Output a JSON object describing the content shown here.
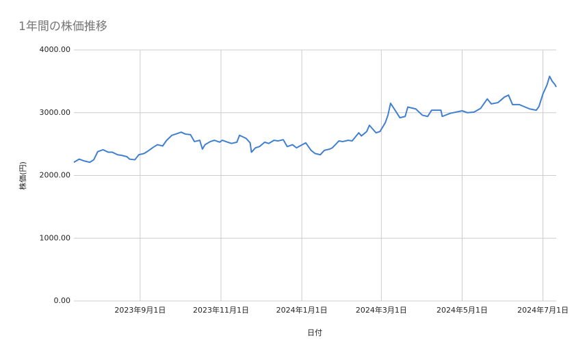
{
  "chart_data": {
    "type": "line",
    "title": "1年間の株価推移",
    "x_label": "日付",
    "y_label": "株価(円)",
    "x": [
      "2023-07-13",
      "2023-07-17",
      "2023-07-21",
      "2023-07-25",
      "2023-07-28",
      "2023-07-31",
      "2023-08-04",
      "2023-08-08",
      "2023-08-11",
      "2023-08-15",
      "2023-08-18",
      "2023-08-22",
      "2023-08-24",
      "2023-08-28",
      "2023-08-31",
      "2023-09-04",
      "2023-09-07",
      "2023-09-11",
      "2023-09-14",
      "2023-09-18",
      "2023-09-21",
      "2023-09-25",
      "2023-09-28",
      "2023-10-02",
      "2023-10-05",
      "2023-10-09",
      "2023-10-12",
      "2023-10-16",
      "2023-10-18",
      "2023-10-20",
      "2023-10-24",
      "2023-10-27",
      "2023-10-31",
      "2023-11-02",
      "2023-11-06",
      "2023-11-09",
      "2023-11-13",
      "2023-11-15",
      "2023-11-20",
      "2023-11-23",
      "2023-11-24",
      "2023-11-27",
      "2023-11-30",
      "2023-12-04",
      "2023-12-07",
      "2023-12-11",
      "2023-12-14",
      "2023-12-18",
      "2023-12-21",
      "2023-12-25",
      "2023-12-28",
      "2024-01-04",
      "2024-01-08",
      "2024-01-11",
      "2024-01-15",
      "2024-01-18",
      "2024-01-22",
      "2024-01-24",
      "2024-01-29",
      "2024-02-01",
      "2024-02-05",
      "2024-02-08",
      "2024-02-13",
      "2024-02-15",
      "2024-02-19",
      "2024-02-21",
      "2024-02-26",
      "2024-02-29",
      "2024-03-04",
      "2024-03-06",
      "2024-03-08",
      "2024-03-12",
      "2024-03-15",
      "2024-03-19",
      "2024-03-21",
      "2024-03-27",
      "2024-04-01",
      "2024-04-05",
      "2024-04-08",
      "2024-04-15",
      "2024-04-16",
      "2024-04-22",
      "2024-05-01",
      "2024-05-05",
      "2024-05-10",
      "2024-05-15",
      "2024-05-20",
      "2024-05-23",
      "2024-05-28",
      "2024-06-02",
      "2024-06-05",
      "2024-06-08",
      "2024-06-13",
      "2024-06-21",
      "2024-06-26",
      "2024-06-28",
      "2024-07-01",
      "2024-07-04",
      "2024-07-06",
      "2024-07-08",
      "2024-07-10",
      "2024-07-11"
    ],
    "series": [
      {
        "name": "株価(円)",
        "color": "#3f7fd0",
        "values": [
          2210,
          2260,
          2230,
          2210,
          2250,
          2380,
          2410,
          2370,
          2370,
          2330,
          2320,
          2300,
          2260,
          2250,
          2330,
          2350,
          2390,
          2450,
          2490,
          2470,
          2560,
          2640,
          2660,
          2690,
          2660,
          2650,
          2540,
          2560,
          2420,
          2490,
          2540,
          2560,
          2530,
          2560,
          2530,
          2510,
          2530,
          2640,
          2590,
          2520,
          2370,
          2440,
          2460,
          2530,
          2510,
          2560,
          2550,
          2570,
          2460,
          2490,
          2440,
          2520,
          2400,
          2350,
          2330,
          2400,
          2420,
          2440,
          2550,
          2540,
          2560,
          2550,
          2680,
          2630,
          2700,
          2800,
          2680,
          2700,
          2840,
          2960,
          3150,
          3020,
          2920,
          2940,
          3090,
          3060,
          2960,
          2940,
          3040,
          3040,
          2940,
          2990,
          3030,
          3000,
          3010,
          3070,
          3220,
          3140,
          3160,
          3250,
          3280,
          3130,
          3130,
          3060,
          3040,
          3100,
          3300,
          3440,
          3580,
          3500,
          3450,
          3410
        ]
      }
    ],
    "xlim": [
      "2023-07-13",
      "2024-07-11"
    ],
    "xticks": [
      {
        "value": "2023-09-01",
        "label": "2023年9月1日"
      },
      {
        "value": "2023-11-01",
        "label": "2023年11月1日"
      },
      {
        "value": "2024-01-01",
        "label": "2024年1月1日"
      },
      {
        "value": "2024-03-01",
        "label": "2024年3月1日"
      },
      {
        "value": "2024-05-01",
        "label": "2024年5月1日"
      },
      {
        "value": "2024-07-01",
        "label": "2024年7月1日"
      }
    ],
    "ylim": [
      0,
      4000
    ],
    "yticks": [
      {
        "value": 0,
        "label": "0.00"
      },
      {
        "value": 1000,
        "label": "1000.00"
      },
      {
        "value": 2000,
        "label": "2000.00"
      },
      {
        "value": 3000,
        "label": "3000.00"
      },
      {
        "value": 4000,
        "label": "4000.00"
      }
    ],
    "grid": true
  }
}
